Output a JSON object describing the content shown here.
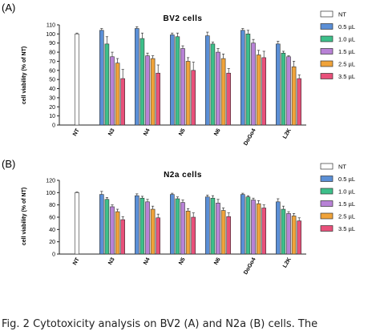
{
  "figure": {
    "caption": "Fig. 2  Cytotoxicity analysis on BV2 (A) and N2a (B) cells. The"
  },
  "chart_data": [
    {
      "type": "bar",
      "panel_label": "(A)",
      "title": "BV2 cells",
      "ylabel": "cell viability (% of NT)",
      "xlabel": "",
      "ylim": [
        0,
        110
      ],
      "yticks": [
        0,
        10,
        20,
        30,
        40,
        50,
        60,
        70,
        80,
        90,
        100,
        110
      ],
      "grid": false,
      "legend_position": "right",
      "categories": [
        "NT",
        "N3",
        "N4",
        "N5",
        "N6",
        "DoGo4",
        "L2K"
      ],
      "series": [
        {
          "name": "NT",
          "color": "#ffffff",
          "values": [
            100,
            null,
            null,
            null,
            null,
            null,
            null
          ],
          "errors": [
            1,
            null,
            null,
            null,
            null,
            null,
            null
          ]
        },
        {
          "name": "0.5 µL",
          "color": "#5b8fd6",
          "values": [
            null,
            104,
            106,
            99,
            98,
            104,
            89
          ],
          "errors": [
            null,
            2,
            2,
            2,
            4,
            2,
            3
          ]
        },
        {
          "name": "1.0 µL",
          "color": "#3dbf8a",
          "values": [
            null,
            89,
            95,
            97,
            89,
            100,
            79
          ],
          "errors": [
            null,
            8,
            6,
            4,
            2,
            4,
            2
          ]
        },
        {
          "name": "1.5 µL",
          "color": "#b882d6",
          "values": [
            null,
            75,
            76,
            84,
            80,
            90,
            75
          ],
          "errors": [
            null,
            5,
            3,
            3,
            4,
            4,
            1
          ]
        },
        {
          "name": "2.5 µL",
          "color": "#f0a33a",
          "values": [
            null,
            68,
            73,
            70,
            73,
            77,
            64
          ],
          "errors": [
            null,
            5,
            3,
            4,
            5,
            5,
            6
          ]
        },
        {
          "name": "3.5 µL",
          "color": "#e8507a",
          "values": [
            null,
            51,
            57,
            60,
            57,
            74,
            51
          ],
          "errors": [
            null,
            10,
            9,
            9,
            5,
            7,
            4
          ]
        }
      ]
    },
    {
      "type": "bar",
      "panel_label": "(B)",
      "title": "N2a cells",
      "ylabel": "cell viability (% of NT)",
      "xlabel": "",
      "ylim": [
        0,
        120
      ],
      "yticks": [
        0,
        20,
        40,
        60,
        80,
        100,
        120
      ],
      "grid": false,
      "legend_position": "right",
      "categories": [
        "NT",
        "N3",
        "N4",
        "N5",
        "N6",
        "DoGo4",
        "L2K"
      ],
      "series": [
        {
          "name": "NT",
          "color": "#ffffff",
          "values": [
            100,
            null,
            null,
            null,
            null,
            null,
            null
          ],
          "errors": [
            1,
            null,
            null,
            null,
            null,
            null,
            null
          ]
        },
        {
          "name": "0.5 µL",
          "color": "#5b8fd6",
          "values": [
            null,
            97,
            95,
            97,
            93,
            97,
            85
          ],
          "errors": [
            null,
            5,
            3,
            2,
            3,
            2,
            5
          ]
        },
        {
          "name": "1.0 µL",
          "color": "#3dbf8a",
          "values": [
            null,
            89,
            91,
            90,
            91,
            93,
            73
          ],
          "errors": [
            null,
            3,
            3,
            3,
            4,
            2,
            5
          ]
        },
        {
          "name": "1.5 µL",
          "color": "#b882d6",
          "values": [
            null,
            77,
            85,
            84,
            83,
            88,
            66
          ],
          "errors": [
            null,
            3,
            4,
            4,
            6,
            3,
            3
          ]
        },
        {
          "name": "2.5 µL",
          "color": "#f0a33a",
          "values": [
            null,
            69,
            73,
            70,
            71,
            82,
            62
          ],
          "errors": [
            null,
            4,
            5,
            4,
            4,
            5,
            4
          ]
        },
        {
          "name": "3.5 µL",
          "color": "#e8507a",
          "values": [
            null,
            56,
            59,
            60,
            61,
            75,
            54
          ],
          "errors": [
            null,
            5,
            6,
            7,
            6,
            5,
            5
          ]
        }
      ]
    }
  ]
}
